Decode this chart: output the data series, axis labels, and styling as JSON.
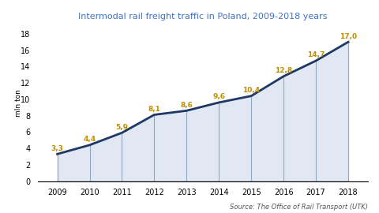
{
  "title": "Intermodal rail freight traffic in Poland, 2009-2018 years",
  "years": [
    2009,
    2010,
    2011,
    2012,
    2013,
    2014,
    2015,
    2016,
    2017,
    2018
  ],
  "values": [
    3.3,
    4.4,
    5.9,
    8.1,
    8.6,
    9.6,
    10.4,
    12.8,
    14.7,
    17.0
  ],
  "ylabel": "mln ton",
  "ylim": [
    0,
    19
  ],
  "yticks": [
    0,
    2,
    4,
    6,
    8,
    10,
    12,
    14,
    16,
    18
  ],
  "line_color": "#1F3864",
  "fill_color": "#C5D3E8",
  "vline_color": "#8EA9C1",
  "title_color": "#4472C4",
  "label_color": "#BF8F00",
  "source_text": "Source: The Office of Rail Transport (UTK)",
  "background_color": "#FFFFFF",
  "title_fontsize": 8.0,
  "label_fontsize": 6.5,
  "axis_fontsize": 7.0,
  "ylabel_fontsize": 6.5,
  "source_fontsize": 6.0
}
